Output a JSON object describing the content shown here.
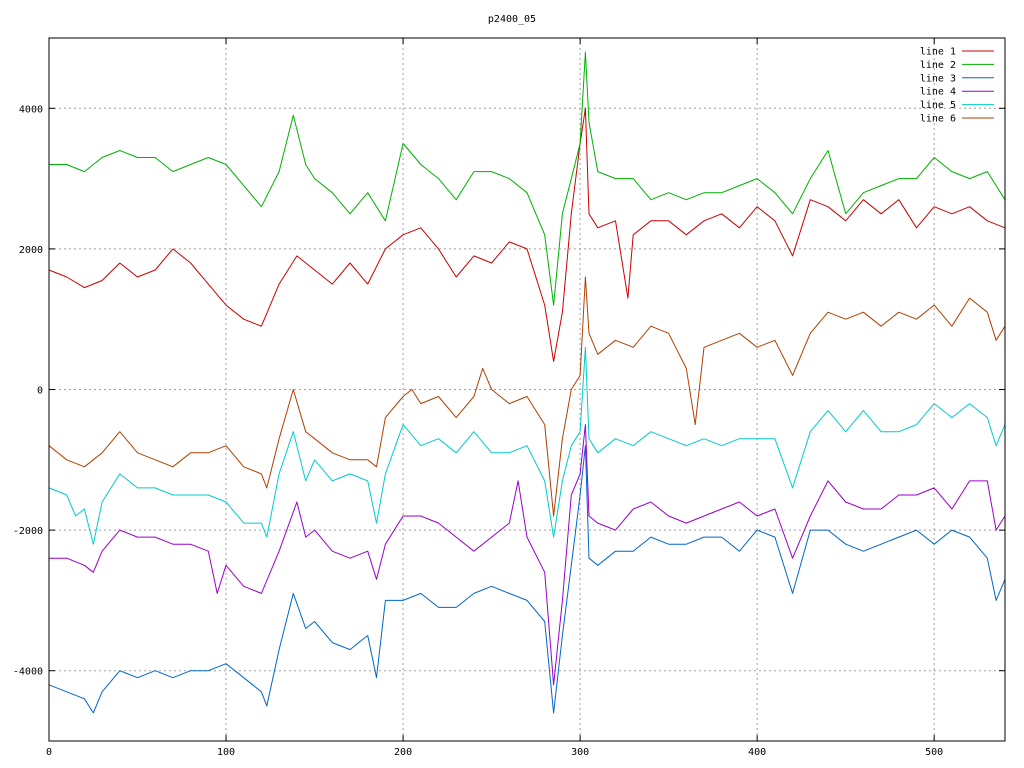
{
  "chart_data": {
    "type": "line",
    "title": "p2400_05",
    "xlabel": "",
    "ylabel": "",
    "xlim": [
      0,
      540
    ],
    "ylim": [
      -5000,
      5000
    ],
    "x_ticks": [
      0,
      100,
      200,
      300,
      400,
      500
    ],
    "y_ticks": [
      -4000,
      -2000,
      0,
      2000,
      4000
    ],
    "grid": true,
    "legend_position": "top-right",
    "series": [
      {
        "name": "line 1",
        "color": "#cc0000",
        "x": [
          0,
          10,
          20,
          30,
          40,
          50,
          60,
          70,
          80,
          90,
          100,
          110,
          120,
          130,
          140,
          150,
          160,
          170,
          180,
          190,
          200,
          210,
          220,
          230,
          240,
          250,
          260,
          270,
          280,
          285,
          290,
          295,
          300,
          303,
          305,
          310,
          320,
          327,
          330,
          340,
          350,
          360,
          370,
          380,
          390,
          400,
          410,
          420,
          430,
          440,
          450,
          460,
          470,
          480,
          490,
          500,
          510,
          520,
          530,
          540
        ],
        "y": [
          1700,
          1600,
          1450,
          1550,
          1800,
          1600,
          1700,
          2000,
          1800,
          1500,
          1200,
          1000,
          900,
          1500,
          1900,
          1700,
          1500,
          1800,
          1500,
          2000,
          2200,
          2300,
          2000,
          1600,
          1900,
          1800,
          2100,
          2000,
          1200,
          400,
          1100,
          2500,
          3500,
          4000,
          2500,
          2300,
          2400,
          1300,
          2200,
          2400,
          2400,
          2200,
          2400,
          2500,
          2300,
          2600,
          2400,
          1900,
          2700,
          2600,
          2400,
          2700,
          2500,
          2700,
          2300,
          2600,
          2500,
          2600,
          2400,
          2300
        ]
      },
      {
        "name": "line 2",
        "color": "#00b000",
        "x": [
          0,
          10,
          20,
          30,
          40,
          50,
          60,
          70,
          80,
          90,
          100,
          110,
          120,
          130,
          138,
          145,
          150,
          160,
          170,
          180,
          190,
          200,
          210,
          220,
          230,
          240,
          250,
          260,
          270,
          280,
          285,
          290,
          295,
          300,
          303,
          305,
          310,
          320,
          330,
          340,
          350,
          360,
          370,
          380,
          390,
          400,
          410,
          420,
          430,
          440,
          450,
          460,
          470,
          480,
          490,
          500,
          510,
          520,
          530,
          540
        ],
        "y": [
          3200,
          3200,
          3100,
          3300,
          3400,
          3300,
          3300,
          3100,
          3200,
          3300,
          3200,
          2900,
          2600,
          3100,
          3900,
          3200,
          3000,
          2800,
          2500,
          2800,
          2400,
          3500,
          3200,
          3000,
          2700,
          3100,
          3100,
          3000,
          2800,
          2200,
          1200,
          2500,
          3000,
          3500,
          4800,
          3800,
          3100,
          3000,
          3000,
          2700,
          2800,
          2700,
          2800,
          2800,
          2900,
          3000,
          2800,
          2500,
          3000,
          3400,
          2500,
          2800,
          2900,
          3000,
          3000,
          3300,
          3100,
          3000,
          3100,
          2700
        ]
      },
      {
        "name": "line 3",
        "color": "#0066cc",
        "x": [
          0,
          10,
          20,
          25,
          30,
          40,
          50,
          60,
          70,
          80,
          90,
          100,
          110,
          120,
          123,
          130,
          138,
          145,
          150,
          160,
          170,
          180,
          185,
          190,
          200,
          210,
          220,
          230,
          240,
          250,
          260,
          270,
          280,
          285,
          290,
          295,
          300,
          303,
          305,
          310,
          320,
          330,
          340,
          350,
          360,
          370,
          380,
          390,
          400,
          410,
          420,
          430,
          440,
          450,
          460,
          470,
          480,
          490,
          500,
          510,
          520,
          530,
          535,
          540
        ],
        "y": [
          -4200,
          -4300,
          -4400,
          -4600,
          -4300,
          -4000,
          -4100,
          -4000,
          -4100,
          -4000,
          -4000,
          -3900,
          -4100,
          -4300,
          -4500,
          -3700,
          -2900,
          -3400,
          -3300,
          -3600,
          -3700,
          -3500,
          -4100,
          -3000,
          -3000,
          -2900,
          -3100,
          -3100,
          -2900,
          -2800,
          -2900,
          -3000,
          -3300,
          -4600,
          -3500,
          -2500,
          -1500,
          -800,
          -2400,
          -2500,
          -2300,
          -2300,
          -2100,
          -2200,
          -2200,
          -2100,
          -2100,
          -2300,
          -2000,
          -2100,
          -2900,
          -2000,
          -2000,
          -2200,
          -2300,
          -2200,
          -2100,
          -2000,
          -2200,
          -2000,
          -2100,
          -2400,
          -3000,
          -2700
        ]
      },
      {
        "name": "line 4",
        "color": "#9900cc",
        "x": [
          0,
          10,
          20,
          25,
          30,
          40,
          50,
          60,
          70,
          80,
          90,
          95,
          100,
          110,
          120,
          130,
          140,
          145,
          150,
          160,
          170,
          180,
          185,
          190,
          200,
          210,
          220,
          230,
          240,
          250,
          260,
          265,
          270,
          280,
          285,
          290,
          295,
          300,
          303,
          305,
          310,
          320,
          330,
          340,
          350,
          360,
          370,
          380,
          390,
          400,
          410,
          420,
          430,
          440,
          450,
          460,
          470,
          480,
          490,
          500,
          510,
          520,
          530,
          535,
          540
        ],
        "y": [
          -2400,
          -2400,
          -2500,
          -2600,
          -2300,
          -2000,
          -2100,
          -2100,
          -2200,
          -2200,
          -2300,
          -2900,
          -2500,
          -2800,
          -2900,
          -2300,
          -1600,
          -2100,
          -2000,
          -2300,
          -2400,
          -2300,
          -2700,
          -2200,
          -1800,
          -1800,
          -1900,
          -2100,
          -2300,
          -2100,
          -1900,
          -1300,
          -2100,
          -2600,
          -4200,
          -3000,
          -1500,
          -1200,
          -500,
          -1800,
          -1900,
          -2000,
          -1700,
          -1600,
          -1800,
          -1900,
          -1800,
          -1700,
          -1600,
          -1800,
          -1700,
          -2400,
          -1800,
          -1300,
          -1600,
          -1700,
          -1700,
          -1500,
          -1500,
          -1400,
          -1700,
          -1300,
          -1300,
          -2000,
          -1800
        ]
      },
      {
        "name": "line 5",
        "color": "#00cccc",
        "x": [
          0,
          10,
          15,
          20,
          25,
          30,
          40,
          50,
          60,
          70,
          80,
          90,
          100,
          110,
          120,
          123,
          130,
          138,
          145,
          150,
          160,
          170,
          180,
          185,
          190,
          200,
          210,
          220,
          230,
          240,
          250,
          260,
          270,
          280,
          285,
          290,
          295,
          300,
          303,
          305,
          310,
          320,
          330,
          340,
          350,
          360,
          370,
          380,
          390,
          400,
          410,
          420,
          430,
          440,
          450,
          460,
          470,
          480,
          490,
          500,
          510,
          520,
          530,
          535,
          540
        ],
        "y": [
          -1400,
          -1500,
          -1800,
          -1700,
          -2200,
          -1600,
          -1200,
          -1400,
          -1400,
          -1500,
          -1500,
          -1500,
          -1600,
          -1900,
          -1900,
          -2100,
          -1200,
          -600,
          -1300,
          -1000,
          -1300,
          -1200,
          -1300,
          -1900,
          -1200,
          -500,
          -800,
          -700,
          -900,
          -600,
          -900,
          -900,
          -800,
          -1300,
          -2100,
          -1300,
          -800,
          -600,
          600,
          -700,
          -900,
          -700,
          -800,
          -600,
          -700,
          -800,
          -700,
          -800,
          -700,
          -700,
          -700,
          -1400,
          -600,
          -300,
          -600,
          -300,
          -600,
          -600,
          -500,
          -200,
          -400,
          -200,
          -400,
          -800,
          -500
        ]
      },
      {
        "name": "line 6",
        "color": "#b04000",
        "x": [
          0,
          10,
          20,
          25,
          30,
          40,
          50,
          60,
          70,
          80,
          90,
          100,
          110,
          120,
          123,
          130,
          138,
          145,
          150,
          160,
          170,
          180,
          185,
          190,
          200,
          205,
          210,
          220,
          230,
          240,
          245,
          250,
          260,
          270,
          280,
          285,
          290,
          295,
          300,
          303,
          305,
          310,
          320,
          330,
          340,
          350,
          360,
          365,
          370,
          380,
          390,
          400,
          410,
          420,
          430,
          440,
          450,
          460,
          470,
          480,
          490,
          500,
          510,
          520,
          530,
          535,
          540
        ],
        "y": [
          -800,
          -1000,
          -1100,
          -1000,
          -900,
          -600,
          -900,
          -1000,
          -1100,
          -900,
          -900,
          -800,
          -1100,
          -1200,
          -1400,
          -700,
          0,
          -600,
          -700,
          -900,
          -1000,
          -1000,
          -1100,
          -400,
          -100,
          0,
          -200,
          -100,
          -400,
          -100,
          300,
          0,
          -200,
          -100,
          -500,
          -1800,
          -700,
          0,
          200,
          1600,
          800,
          500,
          700,
          600,
          900,
          800,
          300,
          -500,
          600,
          700,
          800,
          600,
          700,
          200,
          800,
          1100,
          1000,
          1100,
          900,
          1100,
          1000,
          1200,
          900,
          1300,
          1100,
          700,
          900
        ]
      }
    ]
  }
}
